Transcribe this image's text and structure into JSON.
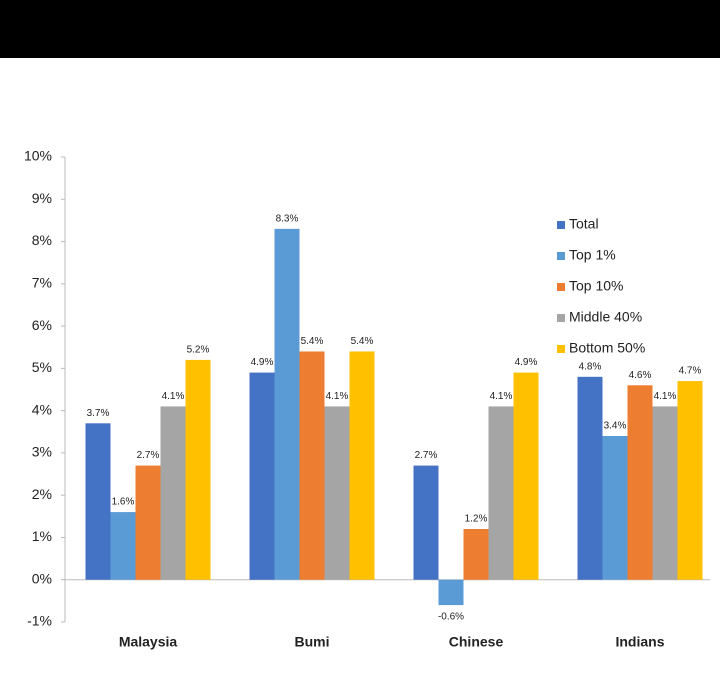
{
  "chart_data": {
    "type": "bar",
    "categories": [
      "Malaysia",
      "Bumi",
      "Chinese",
      "Indians"
    ],
    "series": [
      {
        "name": "Total",
        "color": "#4472c4",
        "values": [
          3.7,
          4.9,
          2.7,
          4.8
        ],
        "value_labels": [
          "3.7%",
          "4.9%",
          "2.7%",
          "4.8%"
        ]
      },
      {
        "name": "Top 1%",
        "color": "#5b9bd5",
        "values": [
          1.6,
          8.3,
          -0.6,
          3.4
        ],
        "value_labels": [
          "1.6%",
          "8.3%",
          "-0.6%",
          "3.4%"
        ]
      },
      {
        "name": "Top 10%",
        "color": "#ed7d31",
        "values": [
          2.7,
          5.4,
          1.2,
          4.6
        ],
        "value_labels": [
          "2.7%",
          "5.4%",
          "1.2%",
          "4.6%"
        ]
      },
      {
        "name": "Middle 40%",
        "color": "#a5a5a5",
        "values": [
          4.1,
          4.1,
          4.1,
          4.1
        ],
        "value_labels": [
          "4.1%",
          "4.1%",
          "4.1%",
          "4.1%"
        ]
      },
      {
        "name": "Bottom 50%",
        "color": "#ffc000",
        "values": [
          5.2,
          5.4,
          4.9,
          4.7
        ],
        "value_labels": [
          "5.2%",
          "5.4%",
          "4.9%",
          "4.7%"
        ]
      }
    ],
    "ylim": [
      -1,
      10
    ],
    "yticks": [
      {
        "value": -1,
        "label": "-1%"
      },
      {
        "value": 0,
        "label": "0%"
      },
      {
        "value": 1,
        "label": "1%"
      },
      {
        "value": 2,
        "label": "2%"
      },
      {
        "value": 3,
        "label": "3%"
      },
      {
        "value": 4,
        "label": "4%"
      },
      {
        "value": 5,
        "label": "5%"
      },
      {
        "value": 6,
        "label": "6%"
      },
      {
        "value": 7,
        "label": "7%"
      },
      {
        "value": 8,
        "label": "8%"
      },
      {
        "value": 9,
        "label": "9%"
      },
      {
        "value": 10,
        "label": "10%"
      }
    ]
  }
}
